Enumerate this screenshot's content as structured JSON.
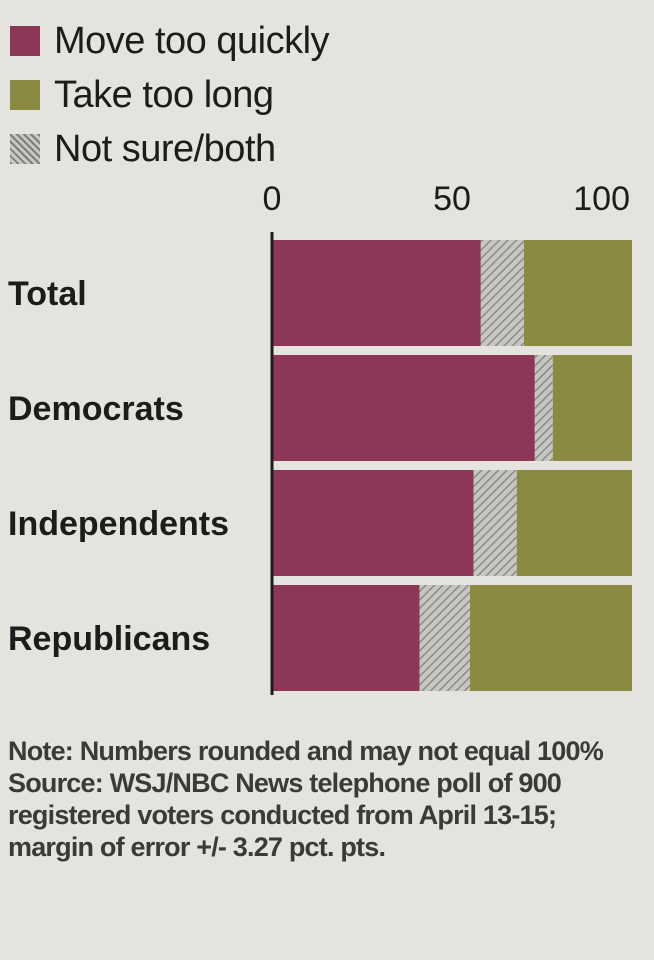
{
  "legend": [
    {
      "label": "Move too quickly",
      "color": "#8c3758"
    },
    {
      "label": "Take too long",
      "color": "#8a8a40"
    },
    {
      "label": "Not sure/both",
      "color": "#a9a9a6"
    }
  ],
  "chart_data": {
    "type": "bar",
    "orientation": "horizontal",
    "stacked": true,
    "categories": [
      "Total",
      "Democrats",
      "Independents",
      "Republicans"
    ],
    "series": [
      {
        "name": "Move too quickly",
        "color": "#8c3758",
        "values": [
          58,
          73,
          56,
          41
        ]
      },
      {
        "name": "Not sure/both",
        "color": "#a9a9a6",
        "values": [
          12,
          5,
          12,
          14
        ]
      },
      {
        "name": "Take too long",
        "color": "#8a8a40",
        "values": [
          30,
          22,
          32,
          45
        ]
      }
    ],
    "x_ticks": [
      0,
      50,
      100
    ],
    "xlim": [
      0,
      100
    ],
    "tick_position": "top",
    "grid": false
  },
  "notes": {
    "note": "Note: Numbers rounded and may not equal 100%",
    "source": "Source: WSJ/NBC News telephone poll of 900 registered voters conducted from April 13-15; margin of error +/- 3.27 pct. pts."
  }
}
